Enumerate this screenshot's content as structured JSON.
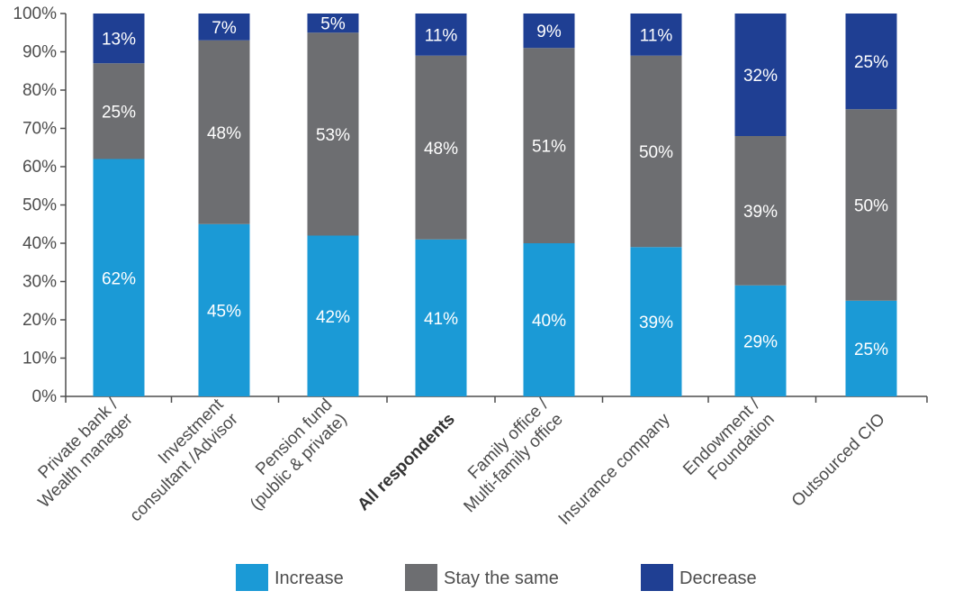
{
  "chart_data": {
    "type": "bar",
    "stacked": true,
    "title": "",
    "xlabel": "",
    "ylabel": "",
    "ylim": [
      0,
      100
    ],
    "y_ticks": [
      "0%",
      "10%",
      "20%",
      "30%",
      "40%",
      "50%",
      "60%",
      "70%",
      "80%",
      "90%",
      "100%"
    ],
    "categories": [
      "Private bank / Wealth manager",
      "Investment consultant /Advisor",
      "Pension fund (public & private)",
      "All respondents",
      "Family office / Multi-family office",
      "Insurance company",
      "Endowment / Foundation",
      "Outsourced CIO"
    ],
    "category_label_lines": [
      [
        "Private bank /",
        "Wealth manager"
      ],
      [
        "Investment",
        "consultant /Advisor"
      ],
      [
        "Pension fund",
        "(public & private)"
      ],
      [
        "All respondents"
      ],
      [
        "Family office /",
        "Multi-family office"
      ],
      [
        "Insurance company"
      ],
      [
        "Endowment /",
        "Foundation"
      ],
      [
        "Outsourced CIO"
      ]
    ],
    "bold_category": "All respondents",
    "series": [
      {
        "name": "Increase",
        "color": "#1b9ad6",
        "values": [
          62,
          45,
          42,
          41,
          40,
          39,
          29,
          25
        ],
        "labels": [
          "62%",
          "45%",
          "42%",
          "41%",
          "40%",
          "39%",
          "29%",
          "25%"
        ]
      },
      {
        "name": "Stay the same",
        "color": "#6d6e71",
        "values": [
          25,
          48,
          53,
          48,
          51,
          50,
          39,
          50
        ],
        "labels": [
          "25%",
          "48%",
          "53%",
          "48%",
          "51%",
          "50%",
          "39%",
          "50%"
        ]
      },
      {
        "name": "Decrease",
        "color": "#1f3f93",
        "values": [
          13,
          7,
          5,
          11,
          9,
          11,
          32,
          25
        ],
        "labels": [
          "13%",
          "7%",
          "5%",
          "11%",
          "9%",
          "11%",
          "32%",
          "25%"
        ]
      }
    ],
    "legend": {
      "position": "bottom"
    },
    "grid": false
  }
}
